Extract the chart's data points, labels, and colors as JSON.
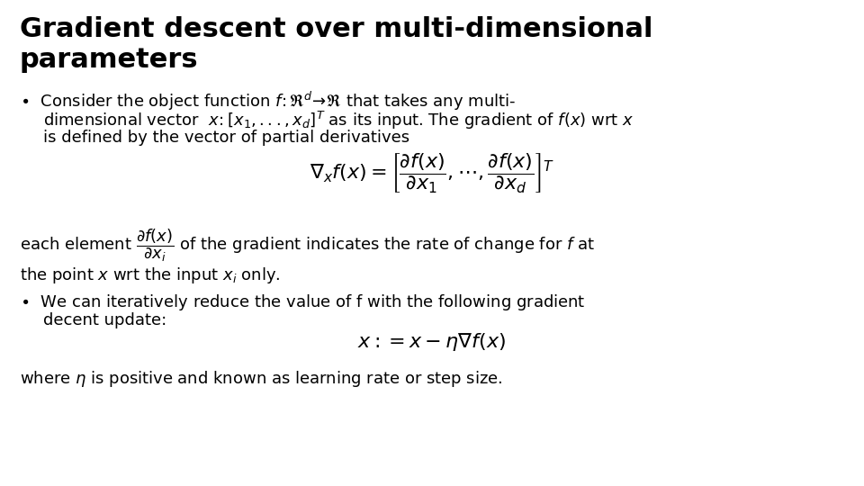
{
  "title_line1": "Gradient descent over multi-dimensional",
  "title_line2": "parameters",
  "title_fontsize": 22,
  "title_fontweight": "bold",
  "background_color": "#ffffff",
  "text_color": "#000000",
  "body_fontsize": 13,
  "eq_fontsize": 14
}
